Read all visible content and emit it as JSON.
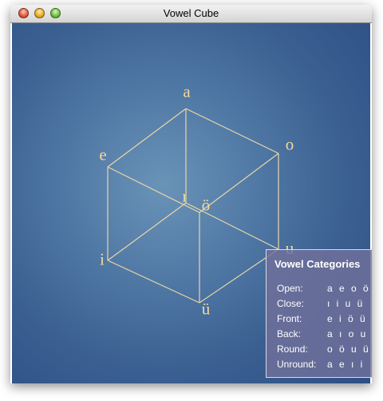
{
  "window": {
    "title": "Vowel Cube",
    "controls": {
      "close": "×",
      "minimize": "–",
      "zoom": "+"
    }
  },
  "cube": {
    "vowels": {
      "a": "a",
      "o": "o",
      "e": "e",
      "back_i": "ı",
      "o_umlaut": "ö",
      "i": "i",
      "u": "u",
      "u_umlaut": "ü"
    }
  },
  "legend": {
    "title": "Vowel Categories",
    "rows": [
      {
        "name": "Open:",
        "vowels": "a e o ö"
      },
      {
        "name": "Close:",
        "vowels": "ı i u ü"
      },
      {
        "name": "Front:",
        "vowels": "e i ö ü"
      },
      {
        "name": "Back:",
        "vowels": "a ı o u"
      },
      {
        "name": "Round:",
        "vowels": "o ö u ü"
      },
      {
        "name": "Unround:",
        "vowels": "a e ı i"
      }
    ]
  },
  "colors": {
    "accent": "#f2d89a",
    "edge": "#ead7a6",
    "background": "#3a5f90"
  }
}
